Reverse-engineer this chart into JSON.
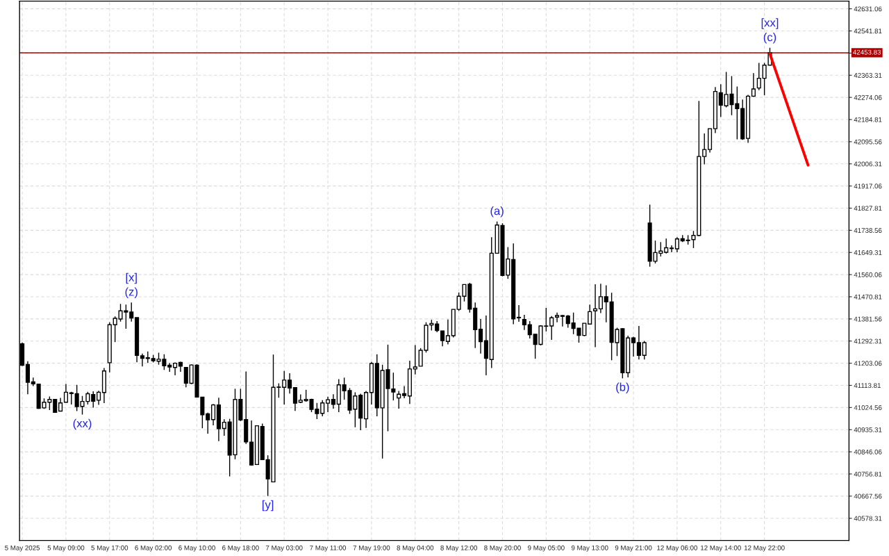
{
  "chart_data": {
    "type": "candlestick",
    "categories": [
      "5 May 2025",
      null,
      null,
      null,
      null,
      null,
      null,
      null,
      "5 May 09:00",
      null,
      null,
      null,
      null,
      null,
      null,
      null,
      "5 May 17:00",
      null,
      null,
      null,
      null,
      null,
      null,
      null,
      "6 May 02:00",
      null,
      null,
      null,
      null,
      null,
      null,
      null,
      "6 May 10:00",
      null,
      null,
      null,
      null,
      null,
      null,
      null,
      "6 May 18:00",
      null,
      null,
      null,
      null,
      null,
      null,
      null,
      "7 May 03:00",
      null,
      null,
      null,
      null,
      null,
      null,
      null,
      "7 May 11:00",
      null,
      null,
      null,
      null,
      null,
      null,
      null,
      "7 May 19:00",
      null,
      null,
      null,
      null,
      null,
      null,
      null,
      "8 May 04:00",
      null,
      null,
      null,
      null,
      null,
      null,
      null,
      "8 May 12:00",
      null,
      null,
      null,
      null,
      null,
      null,
      null,
      "8 May 20:00",
      null,
      null,
      null,
      null,
      null,
      null,
      null,
      "9 May 05:00",
      null,
      null,
      null,
      null,
      null,
      null,
      null,
      "9 May 13:00",
      null,
      null,
      null,
      null,
      null,
      null,
      null,
      "9 May 21:00",
      null,
      null,
      null,
      null,
      null,
      null,
      null,
      "12 May 06:00",
      null,
      null,
      null,
      null,
      null,
      null,
      null,
      "12 May 14:00",
      null,
      null,
      null,
      null,
      null,
      null,
      null,
      "12 May 22:00",
      null,
      null,
      null,
      null,
      null,
      null,
      null,
      null,
      null,
      null,
      null,
      null,
      null,
      null,
      null
    ],
    "ohlc": [
      [
        41281,
        41287,
        41192,
        41195
      ],
      [
        41198,
        41211,
        41078,
        41126
      ],
      [
        41128,
        41145,
        41111,
        41120
      ],
      [
        41119,
        41119,
        41019,
        41021
      ],
      [
        41023,
        41061,
        41019,
        41046
      ],
      [
        41046,
        41069,
        41014,
        41057
      ],
      [
        41057,
        41057,
        41003,
        41005
      ],
      [
        41010,
        41063,
        41010,
        41043
      ],
      [
        41046,
        41119,
        41046,
        41086
      ],
      [
        41084,
        41088,
        41037,
        41081
      ],
      [
        41080,
        41116,
        41010,
        41028
      ],
      [
        41029,
        41071,
        40996,
        41049
      ],
      [
        41049,
        41088,
        41037,
        41080
      ],
      [
        41077,
        41090,
        41024,
        41050
      ],
      [
        41054,
        41092,
        41035,
        41086
      ],
      [
        41085,
        41184,
        41042,
        41172
      ],
      [
        41205,
        41368,
        41166,
        41358
      ],
      [
        41358,
        41392,
        41288,
        41384
      ],
      [
        41381,
        41442,
        41371,
        41414
      ],
      [
        41414,
        41439,
        41342,
        41409
      ],
      [
        41409,
        41448,
        41371,
        41385
      ],
      [
        41387,
        41387,
        41207,
        41235
      ],
      [
        41233,
        41242,
        41190,
        41223
      ],
      [
        41225,
        41250,
        41204,
        41222
      ],
      [
        41222,
        41236,
        41206,
        41213
      ],
      [
        41211,
        41245,
        41197,
        41219
      ],
      [
        41219,
        41239,
        41176,
        41193
      ],
      [
        41195,
        41204,
        41168,
        41188
      ],
      [
        41186,
        41206,
        41154,
        41203
      ],
      [
        41206,
        41209,
        41168,
        41191
      ],
      [
        41186,
        41186,
        41106,
        41123
      ],
      [
        41122,
        41198,
        41119,
        41196
      ],
      [
        41195,
        41199,
        41067,
        41067
      ],
      [
        41066,
        41066,
        40941,
        40995
      ],
      [
        40999,
        41004,
        40919,
        40975
      ],
      [
        40976,
        41039,
        40953,
        41035
      ],
      [
        41035,
        41064,
        40889,
        40939
      ],
      [
        40940,
        40977,
        40911,
        40965
      ],
      [
        40966,
        40979,
        40747,
        40833
      ],
      [
        40834,
        41100,
        40816,
        41057
      ],
      [
        41057,
        41100,
        40970,
        40974
      ],
      [
        40976,
        41170,
        40878,
        40886
      ],
      [
        40885,
        40972,
        40791,
        40793
      ],
      [
        40795,
        40953,
        40795,
        40951
      ],
      [
        40948,
        40960,
        40813,
        40815
      ],
      [
        40814,
        40832,
        40668,
        40737
      ],
      [
        40725,
        41238,
        40725,
        41106
      ],
      [
        41107,
        41122,
        41064,
        41106
      ],
      [
        41106,
        41172,
        41037,
        41135
      ],
      [
        41135,
        41163,
        41081,
        41103
      ],
      [
        41105,
        41105,
        41011,
        41042
      ],
      [
        41046,
        41077,
        41042,
        41054
      ],
      [
        41052,
        41096,
        41048,
        41057
      ],
      [
        41057,
        41060,
        41006,
        41017
      ],
      [
        41018,
        41043,
        40978,
        41000
      ],
      [
        41001,
        41054,
        40989,
        41043
      ],
      [
        41042,
        41068,
        41006,
        41056
      ],
      [
        41057,
        41078,
        41020,
        41037
      ],
      [
        41038,
        41139,
        41006,
        41116
      ],
      [
        41116,
        41145,
        41056,
        41092
      ],
      [
        41093,
        41103,
        40999,
        41014
      ],
      [
        41018,
        41086,
        40945,
        41071
      ],
      [
        41074,
        41080,
        40933,
        40982
      ],
      [
        40979,
        41091,
        40942,
        41085
      ],
      [
        41085,
        41208,
        41037,
        41202
      ],
      [
        41202,
        41239,
        40989,
        41023
      ],
      [
        41023,
        41197,
        40819,
        41174
      ],
      [
        41177,
        41278,
        40929,
        41101
      ],
      [
        41099,
        41165,
        41053,
        41087
      ],
      [
        41063,
        41091,
        41020,
        41078
      ],
      [
        41080,
        41111,
        41062,
        41073
      ],
      [
        41071,
        41213,
        41039,
        41180
      ],
      [
        41180,
        41276,
        41158,
        41188
      ],
      [
        41191,
        41264,
        41191,
        41255
      ],
      [
        41255,
        41368,
        41246,
        41356
      ],
      [
        41357,
        41378,
        41335,
        41363
      ],
      [
        41361,
        41373,
        41328,
        41335
      ],
      [
        41333,
        41333,
        41271,
        41294
      ],
      [
        41291,
        41379,
        41279,
        41314
      ],
      [
        41314,
        41420,
        41307,
        41420
      ],
      [
        41420,
        41488,
        41414,
        41473
      ],
      [
        41473,
        41520,
        41452,
        41520
      ],
      [
        41521,
        41527,
        41407,
        41421
      ],
      [
        41425,
        41448,
        41264,
        41338
      ],
      [
        41340,
        41381,
        41242,
        41290
      ],
      [
        41294,
        41395,
        41154,
        41223
      ],
      [
        41218,
        41711,
        41184,
        41646
      ],
      [
        41646,
        41774,
        41646,
        41760
      ],
      [
        41758,
        41767,
        41553,
        41557
      ],
      [
        41558,
        41671,
        41543,
        41623
      ],
      [
        41621,
        41686,
        41360,
        41382
      ],
      [
        41388,
        41437,
        41370,
        41386
      ],
      [
        41379,
        41398,
        41337,
        41358
      ],
      [
        41358,
        41373,
        41303,
        41318
      ],
      [
        41320,
        41320,
        41221,
        41279
      ],
      [
        41279,
        41356,
        41275,
        41353
      ],
      [
        41353,
        41426,
        41331,
        41352
      ],
      [
        41353,
        41393,
        41297,
        41386
      ],
      [
        41389,
        41407,
        41368,
        41395
      ],
      [
        41395,
        41397,
        41351,
        41392
      ],
      [
        41393,
        41397,
        41346,
        41363
      ],
      [
        41365,
        41407,
        41320,
        41343
      ],
      [
        41344,
        41344,
        41286,
        41315
      ],
      [
        41315,
        41364,
        41312,
        41364
      ],
      [
        41361,
        41439,
        41361,
        41411
      ],
      [
        41414,
        41521,
        41268,
        41422
      ],
      [
        41422,
        41523,
        41405,
        41471
      ],
      [
        41471,
        41517,
        41368,
        41450
      ],
      [
        41450,
        41487,
        41215,
        41287
      ],
      [
        41286,
        41346,
        41232,
        41339
      ],
      [
        41342,
        41344,
        41142,
        41165
      ],
      [
        41165,
        41314,
        41146,
        41305
      ],
      [
        41305,
        41310,
        41230,
        41286
      ],
      [
        41286,
        41353,
        41218,
        41235
      ],
      [
        41235,
        41293,
        41218,
        41286
      ],
      [
        41768,
        41842,
        41592,
        41614
      ],
      [
        41614,
        41697,
        41605,
        41649
      ],
      [
        41646,
        41691,
        41633,
        41655
      ],
      [
        41650,
        41705,
        41645,
        41668
      ],
      [
        41667,
        41678,
        41650,
        41665
      ],
      [
        41664,
        41711,
        41650,
        41704
      ],
      [
        41705,
        41719,
        41691,
        41696
      ],
      [
        41699,
        41719,
        41681,
        41697
      ],
      [
        41701,
        41736,
        41667,
        41718
      ],
      [
        41718,
        42260,
        41715,
        42036
      ],
      [
        42036,
        42129,
        42004,
        42064
      ],
      [
        42064,
        42148,
        42052,
        42148
      ],
      [
        42148,
        42316,
        42130,
        42298
      ],
      [
        42293,
        42327,
        42195,
        42243
      ],
      [
        42240,
        42377,
        42234,
        42286
      ],
      [
        42287,
        42360,
        42202,
        42245
      ],
      [
        42249,
        42318,
        42105,
        42229
      ],
      [
        42229,
        42265,
        42103,
        42107
      ],
      [
        42109,
        42284,
        42091,
        42279
      ],
      [
        42279,
        42372,
        42276,
        42308
      ],
      [
        42312,
        42413,
        42303,
        42351
      ],
      [
        42351,
        42413,
        42283,
        42404
      ],
      [
        42404,
        42474,
        42404,
        42453.83
      ],
      null,
      null,
      null,
      null,
      null,
      null,
      null,
      null,
      null,
      null,
      null,
      null,
      null,
      null
    ],
    "series": [
      {
        "type": "line",
        "color": "#ff0000",
        "values": [
          null,
          null,
          null,
          null,
          null,
          null,
          null,
          null,
          null,
          null,
          null,
          null,
          null,
          null,
          null,
          null,
          null,
          null,
          null,
          null,
          null,
          null,
          null,
          null,
          null,
          null,
          null,
          null,
          null,
          null,
          null,
          null,
          null,
          null,
          null,
          null,
          null,
          null,
          null,
          null,
          null,
          null,
          null,
          null,
          null,
          null,
          null,
          null,
          null,
          null,
          null,
          null,
          null,
          null,
          null,
          null,
          null,
          null,
          null,
          null,
          null,
          null,
          null,
          null,
          null,
          null,
          null,
          null,
          null,
          null,
          null,
          null,
          null,
          null,
          null,
          null,
          null,
          null,
          null,
          null,
          null,
          null,
          null,
          null,
          null,
          null,
          null,
          null,
          null,
          null,
          null,
          null,
          null,
          null,
          null,
          null,
          null,
          null,
          null,
          null,
          null,
          null,
          null,
          null,
          null,
          null,
          null,
          null,
          null,
          null,
          null,
          null,
          null,
          null,
          null,
          null,
          null,
          null,
          null,
          null,
          null,
          null,
          null,
          null,
          null,
          null,
          null,
          null,
          null,
          null,
          null,
          null,
          null,
          null,
          null,
          null,
          null,
          42450,
          null,
          null,
          null,
          null,
          null,
          null,
          42001,
          null,
          null,
          null,
          null,
          null,
          null,
          null
        ]
      }
    ],
    "ref_lines": [
      {
        "axis": "y",
        "value": 42453.83,
        "label": "42453.83",
        "color": "#b00000"
      }
    ],
    "annotations": [
      {
        "text": "(xx)",
        "y": 40996
      },
      {
        "text": "[x]",
        "y": 41448
      },
      {
        "text": "(z)",
        "y": 41448
      },
      {
        "text": "[y]",
        "y": 40668
      },
      {
        "text": "(a)",
        "y": 41774
      },
      {
        "text": "(b)",
        "y": 41142
      },
      {
        "text": "[xx]",
        "y": 42474
      },
      {
        "text": "(c)",
        "y": 42474
      }
    ],
    "ylim": [
      40489,
      42662
    ],
    "yticks": [
      40578.31,
      40667.56,
      40756.81,
      40846.06,
      40935.31,
      41024.56,
      41113.81,
      41203.06,
      41292.31,
      41381.56,
      41470.81,
      41560.06,
      41649.31,
      41738.56,
      41827.81,
      41917.06,
      42006.31,
      42095.56,
      42184.81,
      42274.06,
      42363.31,
      {
        "value": 42452.56,
        "label": null
      },
      42541.81,
      42631.06
    ],
    "grid": true
  }
}
